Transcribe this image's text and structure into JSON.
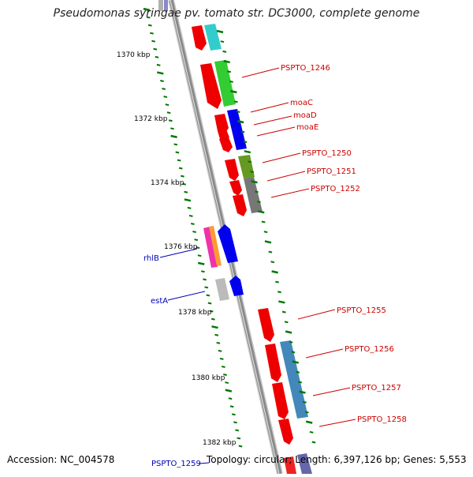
{
  "title": "Pseudomonas syringae pv. tomato str. DC3000, complete genome",
  "footer": {
    "accession": "Accession: NC_004578",
    "topology": "Topology: circular; Length: 6,397,126 bp; Genes: 5,553"
  },
  "colors": {
    "backbone": "#8a8a8a",
    "forward_gene": "#ff0000",
    "label_forward": "#cc0000",
    "label_reverse": "#0000bb",
    "tick": "#007700"
  },
  "ticks": [
    "1370 kbp",
    "1372 kbp",
    "1374 kbp",
    "1376 kbp",
    "1378 kbp",
    "1380 kbp",
    "1382 kbp"
  ],
  "gene_labels": [
    {
      "text": "PSPTO_1246",
      "strand": "+"
    },
    {
      "text": "moaC",
      "strand": "+"
    },
    {
      "text": "moaD",
      "strand": "+"
    },
    {
      "text": "moaE",
      "strand": "+"
    },
    {
      "text": "PSPTO_1250",
      "strand": "+"
    },
    {
      "text": "PSPTO_1251",
      "strand": "+"
    },
    {
      "text": "PSPTO_1252",
      "strand": "+"
    },
    {
      "text": "rhlB",
      "strand": "-"
    },
    {
      "text": "estA",
      "strand": "-"
    },
    {
      "text": "PSPTO_1255",
      "strand": "+"
    },
    {
      "text": "PSPTO_1256",
      "strand": "+"
    },
    {
      "text": "PSPTO_1257",
      "strand": "+"
    },
    {
      "text": "PSPTO_1258",
      "strand": "+"
    },
    {
      "text": "PSPTO_1259",
      "strand": "-"
    }
  ]
}
